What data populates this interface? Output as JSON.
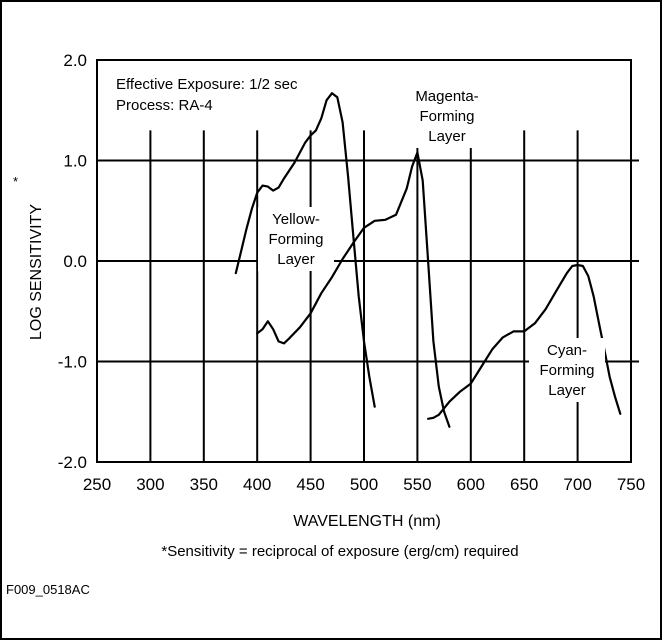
{
  "chart_data": {
    "type": "line",
    "title": "",
    "xlabel": "WAVELENGTH (nm)",
    "ylabel": "LOG SENSITIVITY",
    "ylabel_marker": "*",
    "xlim": [
      250,
      750
    ],
    "ylim": [
      -2.0,
      2.0
    ],
    "x_ticks": [
      250,
      300,
      350,
      400,
      450,
      500,
      550,
      600,
      650,
      700,
      750
    ],
    "y_ticks": [
      2.0,
      1.0,
      0.0,
      -1.0,
      -2.0
    ],
    "y_tick_labels": [
      "2.0",
      "1.0",
      "0.0",
      "-1.0",
      "-2.0"
    ],
    "grid": true,
    "annotations": {
      "exposure": "Effective Exposure:  1/2 sec",
      "process": "Process:  RA-4"
    },
    "series": [
      {
        "label_lines": [
          "Yellow-",
          "Forming",
          "Layer"
        ],
        "x": [
          380,
          385,
          390,
          395,
          400,
          405,
          410,
          415,
          420,
          425,
          430,
          435,
          440,
          445,
          450,
          455,
          460,
          465,
          470,
          475,
          480,
          485,
          490,
          495,
          500,
          505,
          510
        ],
        "y": [
          -0.12,
          0.1,
          0.32,
          0.52,
          0.68,
          0.75,
          0.74,
          0.7,
          0.73,
          0.82,
          0.9,
          0.98,
          1.08,
          1.18,
          1.25,
          1.3,
          1.42,
          1.6,
          1.67,
          1.63,
          1.38,
          0.85,
          0.25,
          -0.35,
          -0.8,
          -1.15,
          -1.45
        ]
      },
      {
        "label_lines": [
          "Magenta-",
          "Forming",
          "Layer"
        ],
        "x": [
          400,
          405,
          410,
          415,
          420,
          425,
          430,
          440,
          450,
          460,
          470,
          480,
          490,
          500,
          510,
          520,
          530,
          540,
          545,
          550,
          555,
          560,
          565,
          570,
          575,
          580
        ],
        "y": [
          -0.72,
          -0.68,
          -0.6,
          -0.68,
          -0.8,
          -0.82,
          -0.77,
          -0.66,
          -0.52,
          -0.32,
          -0.16,
          0.02,
          0.18,
          0.33,
          0.4,
          0.41,
          0.46,
          0.72,
          0.94,
          1.08,
          0.8,
          0.0,
          -0.8,
          -1.25,
          -1.5,
          -1.65
        ]
      },
      {
        "label_lines": [
          "Cyan-",
          "Forming",
          "Layer"
        ],
        "x": [
          560,
          565,
          570,
          580,
          590,
          600,
          610,
          620,
          630,
          640,
          650,
          660,
          670,
          680,
          690,
          695,
          700,
          705,
          710,
          715,
          720,
          725,
          730,
          735,
          740
        ],
        "y": [
          -1.57,
          -1.56,
          -1.53,
          -1.4,
          -1.3,
          -1.22,
          -1.05,
          -0.88,
          -0.76,
          -0.7,
          -0.7,
          -0.62,
          -0.48,
          -0.3,
          -0.12,
          -0.05,
          -0.04,
          -0.05,
          -0.15,
          -0.35,
          -0.62,
          -0.88,
          -1.15,
          -1.35,
          -1.52
        ]
      }
    ]
  },
  "footnote": "*Sensitivity = reciprocal of exposure (erg/cm) required",
  "figure_id": "F009_0518AC"
}
